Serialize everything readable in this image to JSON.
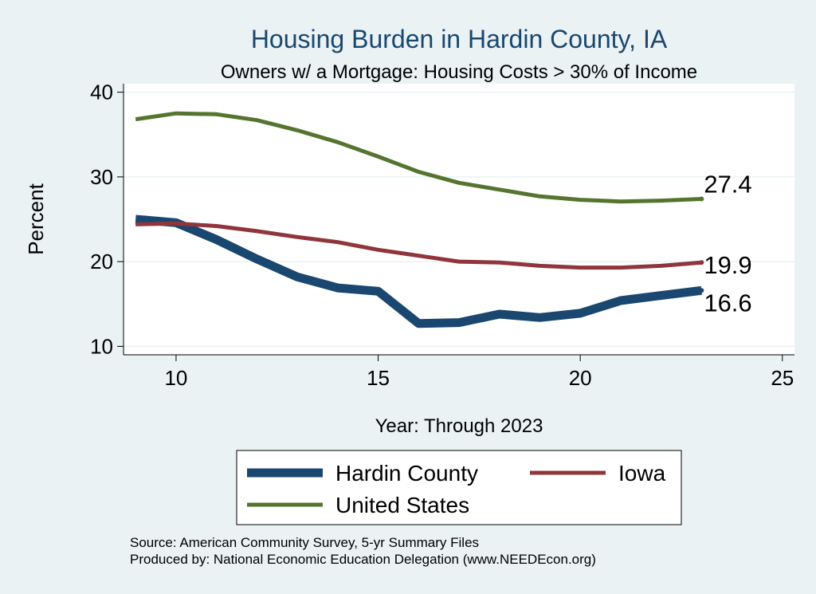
{
  "chart_data": {
    "type": "line",
    "title": "Housing Burden in Hardin County, IA",
    "subtitle": "Owners w/ a Mortgage: Housing Costs > 30% of Income",
    "xlabel": "Year: Through 2023",
    "ylabel": "Percent",
    "xlim": [
      8.7,
      25.3
    ],
    "ylim": [
      9,
      41
    ],
    "x_ticks": [
      10,
      15,
      20,
      25
    ],
    "y_ticks": [
      10,
      20,
      30,
      40
    ],
    "x_tick_labels": [
      "10",
      "15",
      "20",
      "25"
    ],
    "y_tick_labels": [
      "10",
      "20",
      "30",
      "40"
    ],
    "grid": true,
    "legend_position": "bottom",
    "series": [
      {
        "name": "Hardin County",
        "color": "#1a476f",
        "x": [
          9,
          10,
          11,
          12,
          13,
          14,
          15,
          16,
          17,
          18,
          19,
          20,
          21,
          22,
          23
        ],
        "values": [
          25.0,
          24.6,
          22.6,
          20.3,
          18.2,
          16.9,
          16.5,
          12.7,
          12.8,
          13.8,
          13.4,
          13.9,
          15.4,
          16.0,
          16.6
        ],
        "end_label": "16.6"
      },
      {
        "name": "Iowa",
        "color": "#90353b",
        "x": [
          9,
          10,
          11,
          12,
          13,
          14,
          15,
          16,
          17,
          18,
          19,
          20,
          21,
          22,
          23
        ],
        "values": [
          24.4,
          24.5,
          24.2,
          23.6,
          22.9,
          22.3,
          21.4,
          20.7,
          20.0,
          19.9,
          19.5,
          19.3,
          19.3,
          19.5,
          19.9
        ],
        "end_label": "19.9"
      },
      {
        "name": "United States",
        "color": "#55752f",
        "x": [
          9,
          10,
          11,
          12,
          13,
          14,
          15,
          16,
          17,
          18,
          19,
          20,
          21,
          22,
          23
        ],
        "values": [
          36.8,
          37.5,
          37.4,
          36.7,
          35.5,
          34.1,
          32.4,
          30.6,
          29.3,
          28.5,
          27.7,
          27.3,
          27.1,
          27.2,
          27.4
        ],
        "end_label": "27.4"
      }
    ]
  },
  "footer": {
    "source": "Source: American Community Survey, 5-yr Summary Files",
    "produced_by": "Produced by: National Economic Education Delegation (www.NEEDEcon.org)"
  }
}
